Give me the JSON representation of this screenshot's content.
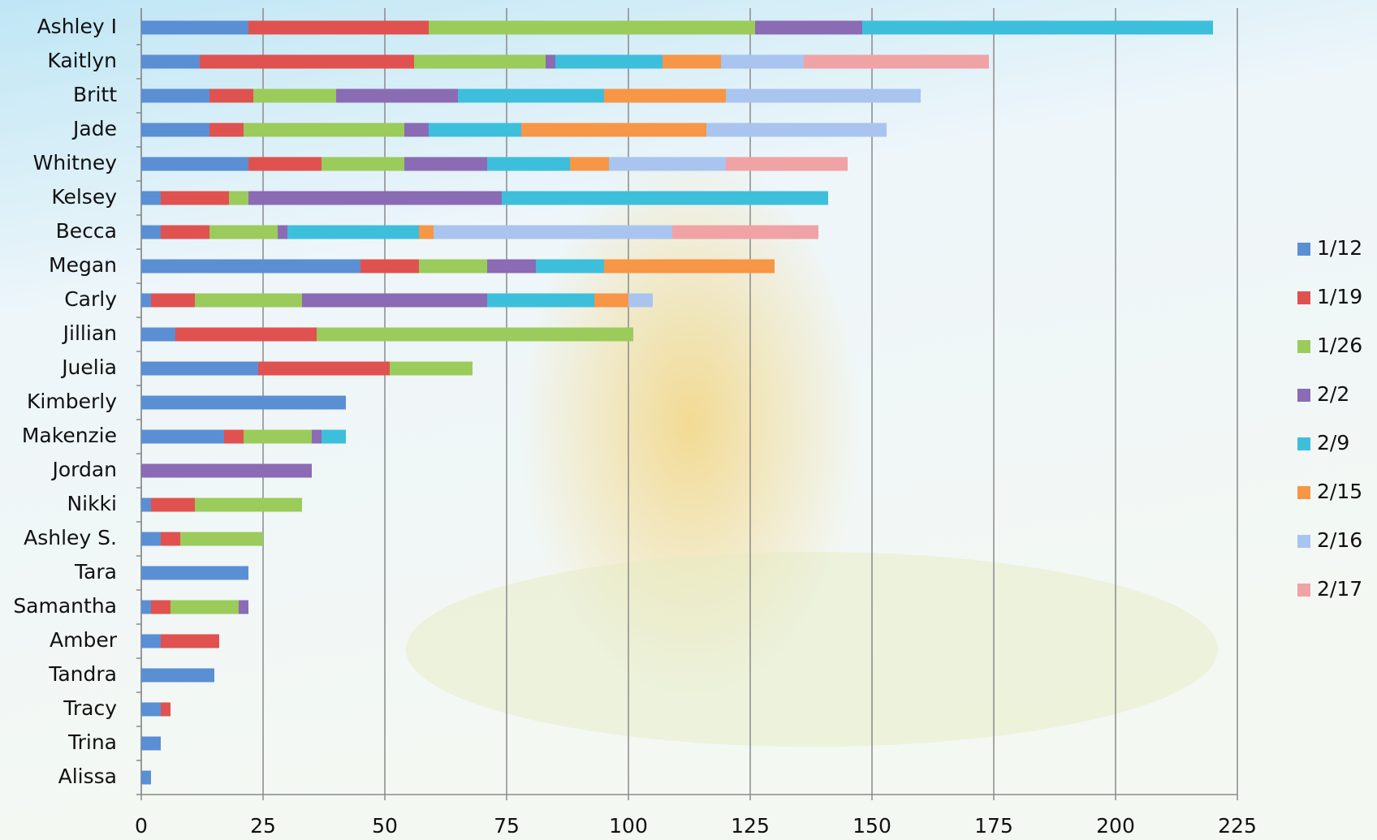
{
  "chart_data": {
    "type": "stacked-bar-horizontal",
    "categories": [
      "Ashley I",
      "Kaitlyn",
      "Britt",
      "Jade",
      "Whitney",
      "Kelsey",
      "Becca",
      "Megan",
      "Carly",
      "Jillian",
      "Juelia",
      "Kimberly",
      "Makenzie",
      "Jordan",
      "Nikki",
      "Ashley S.",
      "Tara",
      "Samantha",
      "Amber",
      "Tandra",
      "Tracy",
      "Trina",
      "Alissa"
    ],
    "series": [
      {
        "name": "1/12",
        "color": "#5b8fd4",
        "values": [
          22,
          12,
          14,
          14,
          22,
          4,
          4,
          45,
          2,
          7,
          24,
          42,
          17,
          0,
          2,
          4,
          22,
          2,
          4,
          15,
          4,
          4,
          2
        ]
      },
      {
        "name": "1/19",
        "color": "#e0524f",
        "values": [
          37,
          44,
          9,
          7,
          15,
          14,
          10,
          12,
          9,
          29,
          27,
          0,
          4,
          0,
          9,
          4,
          0,
          4,
          12,
          0,
          2,
          0,
          0
        ]
      },
      {
        "name": "1/26",
        "color": "#9bcb5b",
        "values": [
          67,
          27,
          17,
          33,
          17,
          4,
          14,
          14,
          22,
          65,
          17,
          0,
          14,
          0,
          22,
          17,
          0,
          14,
          0,
          0,
          0,
          0,
          0
        ]
      },
      {
        "name": "2/2",
        "color": "#8b6bb4",
        "values": [
          22,
          2,
          25,
          5,
          17,
          52,
          2,
          10,
          38,
          0,
          0,
          0,
          2,
          35,
          0,
          0,
          0,
          2,
          0,
          0,
          0,
          0,
          0
        ]
      },
      {
        "name": "2/9",
        "color": "#3dbfdc",
        "values": [
          72,
          22,
          30,
          19,
          17,
          67,
          27,
          14,
          22,
          0,
          0,
          0,
          5,
          0,
          0,
          0,
          0,
          0,
          0,
          0,
          0,
          0,
          0
        ]
      },
      {
        "name": "2/15",
        "color": "#f79646",
        "values": [
          0,
          12,
          25,
          38,
          8,
          0,
          3,
          35,
          7,
          0,
          0,
          0,
          0,
          0,
          0,
          0,
          0,
          0,
          0,
          0,
          0,
          0,
          0
        ]
      },
      {
        "name": "2/16",
        "color": "#a9c4ee",
        "values": [
          0,
          17,
          40,
          37,
          24,
          0,
          49,
          0,
          5,
          0,
          0,
          0,
          0,
          0,
          0,
          0,
          0,
          0,
          0,
          0,
          0,
          0,
          0
        ]
      },
      {
        "name": "2/17",
        "color": "#f0a3a5",
        "values": [
          0,
          38,
          0,
          0,
          25,
          0,
          30,
          0,
          0,
          0,
          0,
          0,
          0,
          0,
          0,
          0,
          0,
          0,
          0,
          0,
          0,
          0,
          0
        ]
      }
    ],
    "xlim": [
      0,
      225
    ],
    "xticks": [
      0,
      25,
      50,
      75,
      100,
      125,
      150,
      175,
      200,
      225
    ],
    "grid": true,
    "legend": "right"
  }
}
